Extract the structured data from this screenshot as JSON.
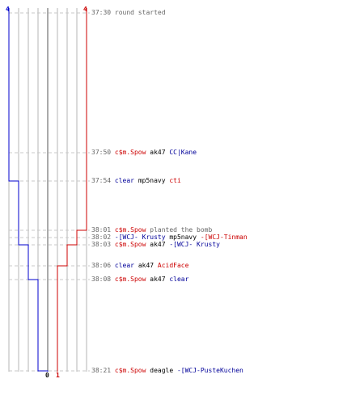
{
  "scores": {
    "blue_start": "4",
    "red_start": "4",
    "blue_end": "0",
    "red_end": "1"
  },
  "colors": {
    "blue": "#0000cc",
    "red": "#cc0000",
    "grid": "#b4b4b4",
    "axis": "#555555",
    "dash": "#c8c8c8",
    "time_text": "#666666"
  },
  "events": [
    {
      "time": "37:30",
      "parts": [
        {
          "text": "round started",
          "color": "gray"
        }
      ]
    },
    {
      "time": "37:50",
      "parts": [
        {
          "text": "c$m.Spow",
          "color": "red"
        },
        {
          "text": " ak47 ",
          "color": "black"
        },
        {
          "text": "CC|Kane",
          "color": "blue"
        }
      ]
    },
    {
      "time": "37:54",
      "parts": [
        {
          "text": "clear",
          "color": "blue"
        },
        {
          "text": " mp5navy ",
          "color": "black"
        },
        {
          "text": "cti",
          "color": "red"
        }
      ]
    },
    {
      "time": "38:01",
      "parts": [
        {
          "text": "c$m.Spow",
          "color": "red"
        },
        {
          "text": " planted the bomb",
          "color": "gray"
        }
      ]
    },
    {
      "time": "38:02",
      "parts": [
        {
          "text": "-[WCJ- Krusty",
          "color": "blue"
        },
        {
          "text": " mp5navy ",
          "color": "black"
        },
        {
          "text": "-[WCJ-Tinman",
          "color": "red"
        }
      ]
    },
    {
      "time": "38:03",
      "parts": [
        {
          "text": "c$m.Spow",
          "color": "red"
        },
        {
          "text": " ak47 ",
          "color": "black"
        },
        {
          "text": "-[WCJ- Krusty",
          "color": "blue"
        }
      ]
    },
    {
      "time": "38:06",
      "parts": [
        {
          "text": "clear",
          "color": "blue"
        },
        {
          "text": " ak47 ",
          "color": "black"
        },
        {
          "text": "AcidFace",
          "color": "red"
        }
      ]
    },
    {
      "time": "38:08",
      "parts": [
        {
          "text": "c$m.Spow",
          "color": "red"
        },
        {
          "text": " ak47 ",
          "color": "black"
        },
        {
          "text": "clear",
          "color": "blue"
        }
      ]
    },
    {
      "time": "38:21",
      "parts": [
        {
          "text": "c$m.Spow",
          "color": "red"
        },
        {
          "text": " deagle ",
          "color": "black"
        },
        {
          "text": "-[WCJ-PusteKuchen",
          "color": "blue"
        }
      ]
    }
  ],
  "chart_data": {
    "type": "line",
    "series": [
      {
        "color": "blue",
        "values": [
          4,
          4,
          3,
          3,
          3,
          2,
          2,
          1,
          0
        ]
      },
      {
        "color": "red",
        "values": [
          4,
          4,
          4,
          3,
          3,
          2,
          1,
          1,
          1
        ]
      }
    ]
  }
}
